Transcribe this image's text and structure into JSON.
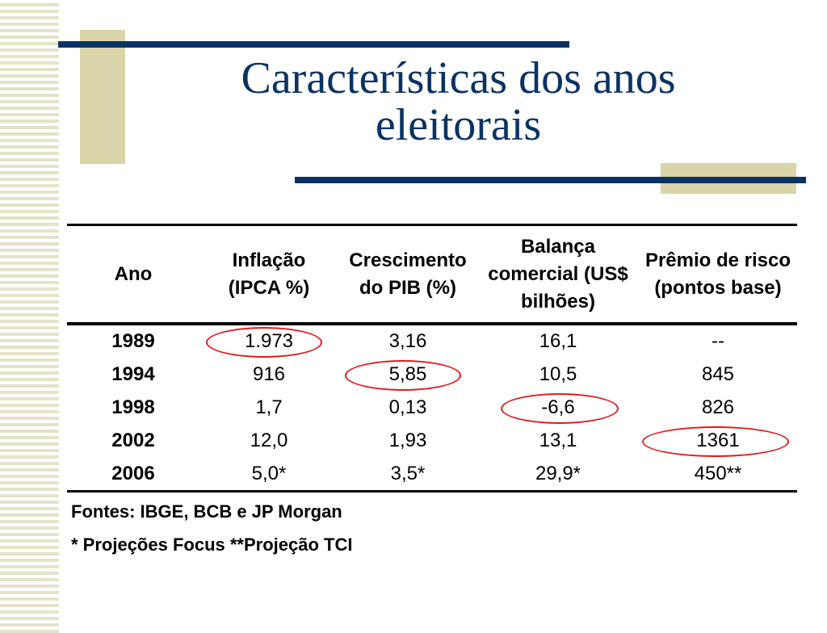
{
  "title": {
    "line1": "Características dos anos",
    "line2": "eleitorais"
  },
  "table": {
    "headers": [
      {
        "lines": [
          "Ano"
        ]
      },
      {
        "lines": [
          "Inflação",
          "(IPCA %)"
        ]
      },
      {
        "lines": [
          "Crescimento",
          "do PIB (%)"
        ]
      },
      {
        "lines": [
          "Balança",
          "comercial (US$",
          "bilhões)"
        ]
      },
      {
        "lines": [
          "Prêmio de risco",
          "(pontos base)"
        ]
      }
    ],
    "rows": [
      {
        "year": "1989",
        "inflation": "1.973",
        "gdp": "3,16",
        "trade": "16,1",
        "risk": "--"
      },
      {
        "year": "1994",
        "inflation": "916",
        "gdp": "5,85",
        "trade": "10,5",
        "risk": "845"
      },
      {
        "year": "1998",
        "inflation": "1,7",
        "gdp": "0,13",
        "trade": "-6,6",
        "risk": "826"
      },
      {
        "year": "2002",
        "inflation": "12,0",
        "gdp": "1,93",
        "trade": "13,1",
        "risk": "1361"
      },
      {
        "year": "2006",
        "inflation": "5,0*",
        "gdp": "3,5*",
        "trade": "29,9*",
        "risk": "450**"
      }
    ],
    "highlighted": [
      {
        "row": "1989",
        "column": "inflation"
      },
      {
        "row": "1994",
        "column": "gdp"
      },
      {
        "row": "1998",
        "column": "trade"
      },
      {
        "row": "2002",
        "column": "risk"
      }
    ]
  },
  "notes": {
    "sources": "Fontes: IBGE, BCB e JP Morgan",
    "projections": "* Projeções Focus **Projeção TCI"
  },
  "colors": {
    "title": "#0a3364",
    "accent_bar": "#0a3364",
    "tan": "#d9d4a9",
    "highlight": "#e01b1b"
  }
}
